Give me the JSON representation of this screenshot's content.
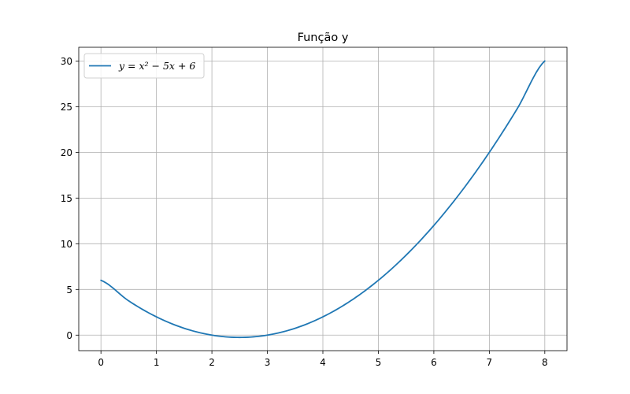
{
  "chart_data": {
    "type": "line",
    "title": "Função y",
    "xlabel": "",
    "ylabel": "",
    "xlim": [
      -0.4,
      8.4
    ],
    "ylim": [
      -1.7,
      31.5
    ],
    "xticks": [
      0,
      1,
      2,
      3,
      4,
      5,
      6,
      7,
      8
    ],
    "yticks": [
      0,
      5,
      10,
      15,
      20,
      25,
      30
    ],
    "grid": true,
    "legend_position": "top-left",
    "series": [
      {
        "name": "y = x² − 5x + 6",
        "color": "#1f77b4",
        "x": [
          0,
          0.5,
          1,
          1.5,
          2,
          2.5,
          3,
          3.5,
          4,
          4.5,
          5,
          5.5,
          6,
          6.5,
          7,
          7.5,
          8
        ],
        "y": [
          6,
          3.75,
          2,
          0.75,
          0,
          -0.25,
          0,
          0.75,
          2,
          3.75,
          6,
          8.75,
          12,
          15.75,
          20,
          24.75,
          30
        ]
      }
    ]
  }
}
